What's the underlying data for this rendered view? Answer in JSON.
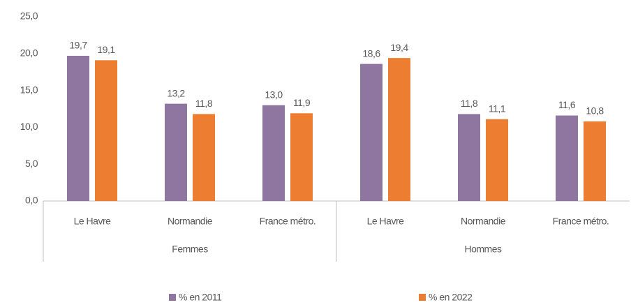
{
  "chart_data": {
    "type": "bar",
    "categories": [
      "Le Havre",
      "Normandie",
      "France métro.",
      "Le Havre",
      "Normandie",
      "France métro."
    ],
    "groups": [
      {
        "name": "Femmes",
        "size": 3
      },
      {
        "name": "Hommes",
        "size": 3
      }
    ],
    "series": [
      {
        "name": "% en 2011",
        "color": "#8e76a0",
        "values": [
          19.7,
          13.2,
          13.0,
          18.6,
          11.8,
          11.6
        ],
        "value_labels": [
          "19,7",
          "13,2",
          "13,0",
          "18,6",
          "11,8",
          "11,6"
        ]
      },
      {
        "name": "% en 2022",
        "color": "#ed7d31",
        "values": [
          19.1,
          11.8,
          11.9,
          19.4,
          11.1,
          10.8
        ],
        "value_labels": [
          "19,1",
          "11,8",
          "11,9",
          "19,4",
          "11,1",
          "10,8"
        ]
      }
    ],
    "ylim": [
      0,
      25
    ],
    "yticks": [
      {
        "value": 0,
        "label": "0,0"
      },
      {
        "value": 5,
        "label": "5,0"
      },
      {
        "value": 10,
        "label": "10,0"
      },
      {
        "value": 15,
        "label": "15,0"
      },
      {
        "value": 20,
        "label": "20,0"
      },
      {
        "value": 25,
        "label": "25,0"
      }
    ],
    "grid": false,
    "legend": "bottom"
  }
}
